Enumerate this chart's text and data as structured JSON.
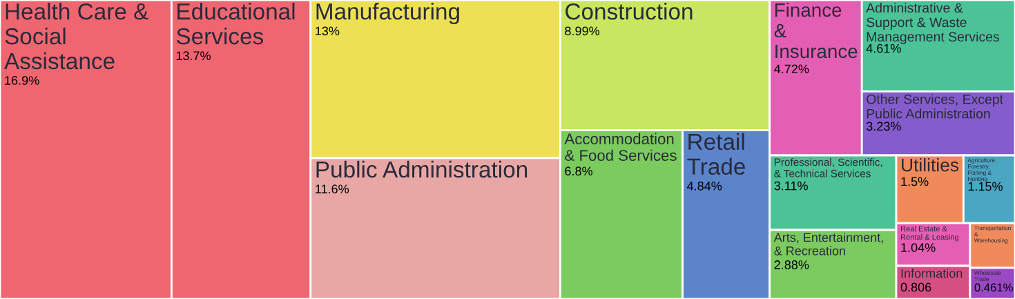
{
  "chart_data": {
    "type": "other",
    "categories": [
      "Health Care & Social Assistance",
      "Educational Services",
      "Manufacturing",
      "Public Administration",
      "Construction",
      "Accommodation & Food Services",
      "Retail Trade",
      "Finance & Insurance",
      "Administrative & Support & Waste Management Services",
      "Other Services, Except Public Administration",
      "Professional, Scientific, & Technical Services",
      "Arts, Entertainment, & Recreation",
      "Utilities",
      "Agriculture, Forestry, Fishing & Hunting",
      "Real Estate & Rental & Leasing",
      "Information",
      "Transportation & Warehousing",
      "Wholesale Trade"
    ],
    "values": [
      16.9,
      13.7,
      13,
      11.6,
      8.99,
      6.8,
      4.84,
      4.72,
      4.61,
      3.23,
      3.11,
      2.88,
      1.5,
      1.15,
      1.04,
      0.806,
      null,
      0.461
    ],
    "value_labels": [
      "16.9%",
      "13.7%",
      "13%",
      "11.6%",
      "8.99%",
      "6.8%",
      "4.84%",
      "4.72%",
      "4.61%",
      "3.23%",
      "3.11%",
      "2.88%",
      "1.5%",
      "1.15%",
      "1.04%",
      "0.806",
      null,
      "0.461%"
    ],
    "colors": [
      "#ef6670",
      "#ef6670",
      "#ede055",
      "#e8a7a5",
      "#c8e65f",
      "#7bcb5f",
      "#5b84cb",
      "#e45fb3",
      "#4bc397",
      "#845ccc",
      "#4bc397",
      "#7bcb5f",
      "#f08a5a",
      "#4aa6c3",
      "#e45fb3",
      "#d64f83",
      "#f08a5a",
      "#9a48c4"
    ]
  }
}
